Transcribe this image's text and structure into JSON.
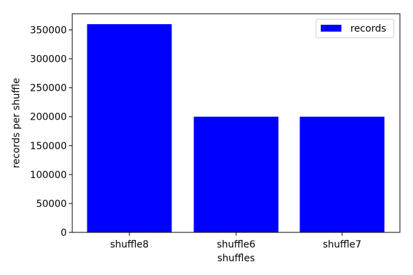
{
  "chart_data": {
    "type": "bar",
    "categories": [
      "shuffle8",
      "shuffle6",
      "shuffle7"
    ],
    "series": [
      {
        "name": "records",
        "values": [
          360000,
          200000,
          200000
        ],
        "color": "#0000ff"
      }
    ],
    "xlabel": "shuffles",
    "ylabel": "records per shuffle",
    "ylim": [
      0,
      378000
    ],
    "y_ticks": [
      0,
      50000,
      100000,
      150000,
      200000,
      250000,
      300000,
      350000
    ],
    "grid": false,
    "legend_position": "top-right"
  }
}
